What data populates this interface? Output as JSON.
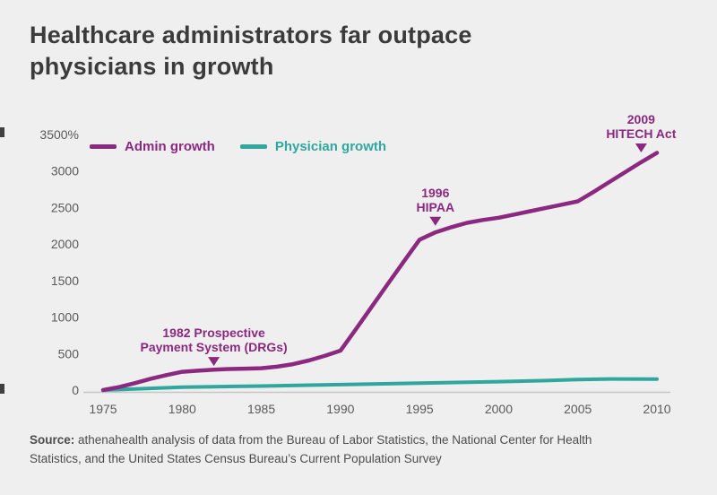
{
  "page": {
    "background": "#efefef",
    "title_lines": [
      "Healthcare administrators far outpace",
      "physicians in growth"
    ],
    "source": {
      "prefix": "Source:",
      "text": " athenahealth analysis of data from the Bureau of Labor Statistics, the National Center for Health Statistics, and the United States Census Bureau’s Current Population Survey"
    }
  },
  "chart_data": {
    "type": "line",
    "title": "Healthcare administrators far outpace physicians in growth",
    "xlabel": "",
    "ylabel": "",
    "xlim": [
      1975,
      2010
    ],
    "ylim": [
      0,
      3500
    ],
    "grid": false,
    "legend_position": "top-left",
    "xticks": [
      1975,
      1980,
      1985,
      1990,
      1995,
      2000,
      2005,
      2010
    ],
    "yticks": [
      0,
      500,
      1000,
      1500,
      2000,
      2500,
      3000,
      3500
    ],
    "ytick_labels": [
      "0",
      "500",
      "1000",
      "1500",
      "2000",
      "2500",
      "3000",
      "3500%"
    ],
    "series": [
      {
        "name": "Admin growth",
        "color": "#8b2980",
        "stroke_width": 4.5,
        "points": [
          [
            1975,
            0
          ],
          [
            1976,
            40
          ],
          [
            1977,
            95
          ],
          [
            1978,
            155
          ],
          [
            1979,
            205
          ],
          [
            1980,
            250
          ],
          [
            1981,
            265
          ],
          [
            1982,
            280
          ],
          [
            1983,
            288
          ],
          [
            1984,
            294
          ],
          [
            1985,
            300
          ],
          [
            1986,
            320
          ],
          [
            1987,
            355
          ],
          [
            1988,
            405
          ],
          [
            1989,
            468
          ],
          [
            1990,
            540
          ],
          [
            1991,
            840
          ],
          [
            1992,
            1150
          ],
          [
            1993,
            1455
          ],
          [
            1994,
            1760
          ],
          [
            1995,
            2060
          ],
          [
            1996,
            2160
          ],
          [
            1997,
            2230
          ],
          [
            1998,
            2290
          ],
          [
            1999,
            2330
          ],
          [
            2000,
            2360
          ],
          [
            2001,
            2405
          ],
          [
            2002,
            2450
          ],
          [
            2003,
            2495
          ],
          [
            2004,
            2540
          ],
          [
            2005,
            2585
          ],
          [
            2006,
            2715
          ],
          [
            2007,
            2850
          ],
          [
            2008,
            2985
          ],
          [
            2009,
            3120
          ],
          [
            2010,
            3250
          ]
        ]
      },
      {
        "name": "Physician growth",
        "color": "#2fa79e",
        "stroke_width": 4,
        "points": [
          [
            1975,
            0
          ],
          [
            1977,
            15
          ],
          [
            1980,
            40
          ],
          [
            1985,
            55
          ],
          [
            1990,
            75
          ],
          [
            1995,
            95
          ],
          [
            2000,
            115
          ],
          [
            2003,
            130
          ],
          [
            2005,
            145
          ],
          [
            2007,
            152
          ],
          [
            2010,
            150
          ]
        ]
      }
    ],
    "annotations": [
      {
        "x": 1982,
        "y": 330,
        "lines": [
          "1982 Prospective",
          "Payment System (DRGs)"
        ],
        "marker": "triangle-down"
      },
      {
        "x": 1996,
        "y": 2250,
        "lines": [
          "1996",
          "HIPAA"
        ],
        "marker": "triangle-down"
      },
      {
        "x": 2009,
        "y": 3255,
        "lines": [
          "2009",
          "HITECH Act"
        ],
        "marker": "triangle-down"
      }
    ]
  }
}
